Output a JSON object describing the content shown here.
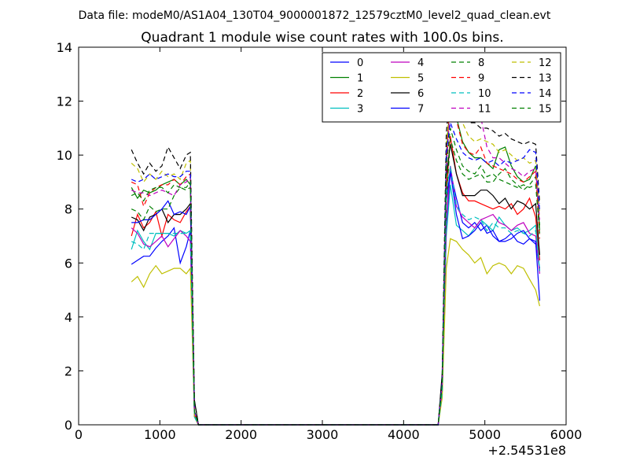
{
  "suptitle": "Data file: modeM0/AS1A04_130T04_9000001872_12579cztM0_level2_quad_clean.evt",
  "chart_data": {
    "type": "line",
    "title": "Quadrant 1 module wise count rates with 100.0s bins.",
    "xlabel": "",
    "ylabel": "",
    "x_offset_label": "+2.54531e8",
    "xlim": [
      0,
      6000
    ],
    "ylim": [
      0,
      14
    ],
    "xticks": [
      0,
      1000,
      2000,
      3000,
      4000,
      5000,
      6000
    ],
    "yticks": [
      0,
      2,
      4,
      6,
      8,
      10,
      12,
      14
    ],
    "grid": false,
    "legend": {
      "placement": "top-right",
      "columns": 4
    },
    "x": [
      650,
      725,
      800,
      875,
      950,
      1025,
      1100,
      1175,
      1250,
      1325,
      1375,
      1425,
      1475,
      1550,
      1650,
      4350,
      4425,
      4475,
      4525,
      4575,
      4650,
      4725,
      4800,
      4875,
      4950,
      5025,
      5100,
      5175,
      5250,
      5325,
      5400,
      5475,
      5550,
      5625,
      5675
    ],
    "series": [
      {
        "name": "0",
        "color": "#0000ff",
        "dash": "solid",
        "values": [
          5.95,
          6.1,
          6.25,
          6.25,
          6.55,
          6.8,
          7.0,
          7.3,
          6.0,
          6.6,
          7.2,
          0.3,
          0.0,
          0.0,
          0.0,
          0.0,
          0.0,
          1.2,
          7.2,
          9.4,
          8.4,
          7.5,
          7.3,
          7.5,
          7.2,
          7.4,
          7.0,
          6.8,
          6.9,
          7.1,
          6.8,
          6.7,
          6.9,
          6.7,
          5.8
        ]
      },
      {
        "name": "1",
        "color": "#008000",
        "dash": "solid",
        "values": [
          8.8,
          8.4,
          8.7,
          8.6,
          8.7,
          8.9,
          9.0,
          9.1,
          8.9,
          9.1,
          8.9,
          0.5,
          0.0,
          0.0,
          0.0,
          0.0,
          0.0,
          1.6,
          9.8,
          12.2,
          11.4,
          10.5,
          10.1,
          9.9,
          9.9,
          9.7,
          9.5,
          10.2,
          10.3,
          9.6,
          9.2,
          9.0,
          9.1,
          9.6,
          7.2
        ]
      },
      {
        "name": "2",
        "color": "#ff0000",
        "dash": "solid",
        "values": [
          7.0,
          7.8,
          7.3,
          7.5,
          7.9,
          7.0,
          7.8,
          7.6,
          7.5,
          7.9,
          8.1,
          0.4,
          0.0,
          0.0,
          0.0,
          0.0,
          0.0,
          1.4,
          8.6,
          10.7,
          9.3,
          8.6,
          8.3,
          8.3,
          8.2,
          8.1,
          8.0,
          8.1,
          8.0,
          8.2,
          7.8,
          8.0,
          8.4,
          7.7,
          6.1
        ]
      },
      {
        "name": "3",
        "color": "#00bfbf",
        "dash": "solid",
        "values": [
          6.5,
          7.2,
          6.8,
          6.5,
          7.1,
          7.1,
          7.1,
          7.0,
          7.2,
          7.1,
          7.2,
          0.3,
          0.0,
          0.0,
          0.0,
          0.0,
          0.0,
          1.2,
          7.0,
          8.9,
          7.4,
          7.2,
          7.0,
          7.3,
          7.6,
          7.4,
          7.2,
          7.7,
          7.4,
          7.2,
          7.3,
          7.1,
          7.2,
          7.4,
          5.7
        ]
      },
      {
        "name": "4",
        "color": "#bf00bf",
        "dash": "solid",
        "values": [
          7.3,
          7.1,
          6.7,
          6.6,
          6.8,
          7.0,
          6.6,
          6.9,
          7.2,
          7.0,
          6.8,
          0.3,
          0.0,
          0.0,
          0.0,
          0.0,
          0.0,
          1.2,
          7.5,
          9.6,
          8.1,
          7.7,
          7.5,
          7.3,
          7.6,
          7.7,
          7.8,
          7.5,
          7.4,
          7.2,
          7.4,
          7.5,
          7.1,
          7.0,
          5.6
        ]
      },
      {
        "name": "5",
        "color": "#bfbf00",
        "dash": "solid",
        "values": [
          5.3,
          5.5,
          5.1,
          5.6,
          5.9,
          5.6,
          5.7,
          5.8,
          5.8,
          5.6,
          5.8,
          0.3,
          0.0,
          0.0,
          0.0,
          0.0,
          0.0,
          1.0,
          5.8,
          6.9,
          6.8,
          6.5,
          6.3,
          6.0,
          6.2,
          5.6,
          5.9,
          6.0,
          5.9,
          5.6,
          5.9,
          5.8,
          5.4,
          5.0,
          4.4
        ]
      },
      {
        "name": "6",
        "color": "#000000",
        "dash": "solid",
        "values": [
          7.7,
          7.6,
          7.2,
          7.7,
          7.8,
          8.0,
          7.5,
          7.8,
          7.8,
          8.0,
          8.2,
          0.9,
          0.0,
          0.0,
          0.0,
          0.0,
          0.0,
          1.9,
          9.2,
          10.4,
          9.3,
          8.5,
          8.5,
          8.5,
          8.7,
          8.7,
          8.5,
          8.2,
          8.4,
          8.0,
          8.3,
          8.2,
          8.0,
          8.2,
          6.3
        ]
      },
      {
        "name": "7",
        "color": "#0000ff",
        "dash": "solid",
        "values": [
          7.5,
          7.5,
          7.6,
          7.6,
          7.8,
          8.0,
          8.3,
          7.8,
          7.9,
          7.8,
          8.1,
          0.5,
          0.0,
          0.0,
          0.0,
          0.0,
          0.0,
          1.5,
          8.3,
          9.4,
          7.8,
          6.9,
          7.0,
          7.2,
          7.5,
          7.1,
          7.2,
          6.8,
          6.8,
          6.9,
          7.1,
          7.2,
          6.9,
          6.8,
          4.6
        ]
      },
      {
        "name": "8",
        "color": "#008000",
        "dash": "dashed",
        "values": [
          8.0,
          7.9,
          7.6,
          8.1,
          7.9,
          8.0,
          8.0,
          8.5,
          8.8,
          8.7,
          8.8,
          0.5,
          0.0,
          0.0,
          0.0,
          0.0,
          0.0,
          1.5,
          8.2,
          10.6,
          9.8,
          9.3,
          9.1,
          9.2,
          9.3,
          9.0,
          9.0,
          9.3,
          9.5,
          9.1,
          8.9,
          8.7,
          8.9,
          9.2,
          7.4
        ]
      },
      {
        "name": "9",
        "color": "#ff0000",
        "dash": "dashed",
        "values": [
          9.0,
          8.9,
          8.1,
          8.6,
          8.8,
          8.9,
          8.9,
          9.1,
          8.9,
          9.2,
          9.3,
          0.5,
          0.0,
          0.0,
          0.0,
          0.0,
          0.0,
          1.6,
          9.7,
          12.6,
          11.3,
          10.4,
          10.1,
          10.0,
          10.3,
          9.7,
          9.6,
          9.5,
          9.4,
          9.3,
          9.1,
          9.0,
          9.2,
          9.4,
          6.9
        ]
      },
      {
        "name": "10",
        "color": "#00bfbf",
        "dash": "dashed",
        "values": [
          6.8,
          6.7,
          6.5,
          7.1,
          7.1,
          7.1,
          7.1,
          7.1,
          7.1,
          7.1,
          7.2,
          0.3,
          0.0,
          0.0,
          0.0,
          0.0,
          0.0,
          1.2,
          8.6,
          9.6,
          8.1,
          7.8,
          7.6,
          7.7,
          7.6,
          7.2,
          7.5,
          7.3,
          7.3,
          7.1,
          7.2,
          7.1,
          7.0,
          7.2,
          5.7
        ]
      },
      {
        "name": "11",
        "color": "#bf00bf",
        "dash": "dashed",
        "values": [
          8.7,
          8.6,
          8.6,
          8.5,
          8.6,
          8.7,
          8.6,
          8.5,
          8.9,
          9.0,
          9.2,
          0.5,
          0.0,
          0.0,
          0.0,
          0.0,
          0.0,
          1.5,
          9.5,
          11.8,
          11.5,
          11.5,
          11.4,
          11.6,
          11.4,
          10.3,
          9.9,
          9.9,
          9.7,
          9.5,
          9.4,
          9.2,
          9.4,
          9.5,
          7.6
        ]
      },
      {
        "name": "12",
        "color": "#bfbf00",
        "dash": "dashed",
        "values": [
          9.7,
          9.5,
          9.0,
          9.3,
          9.1,
          9.4,
          9.2,
          9.3,
          9.1,
          9.7,
          9.8,
          0.5,
          0.0,
          0.0,
          0.0,
          0.0,
          0.0,
          1.6,
          10.4,
          12.0,
          11.6,
          11.2,
          10.7,
          10.5,
          10.6,
          10.5,
          10.4,
          10.1,
          10.2,
          10.0,
          9.8,
          9.9,
          9.7,
          9.8,
          7.8
        ]
      },
      {
        "name": "13",
        "color": "#000000",
        "dash": "dashed",
        "values": [
          10.2,
          9.7,
          9.3,
          9.7,
          9.4,
          9.6,
          10.3,
          9.9,
          9.5,
          10.0,
          10.1,
          0.9,
          0.0,
          0.0,
          0.0,
          0.0,
          0.0,
          1.8,
          10.8,
          12.5,
          11.8,
          11.6,
          11.2,
          11.2,
          11.0,
          11.0,
          10.9,
          10.7,
          10.8,
          10.6,
          10.5,
          10.4,
          10.5,
          10.4,
          8.2
        ]
      },
      {
        "name": "14",
        "color": "#0000ff",
        "dash": "dashed",
        "values": [
          9.1,
          9.0,
          9.1,
          9.3,
          9.1,
          9.2,
          9.3,
          9.2,
          9.2,
          9.4,
          9.4,
          0.5,
          0.0,
          0.0,
          0.0,
          0.0,
          0.0,
          1.6,
          10.1,
          11.2,
          10.6,
          10.1,
          9.9,
          9.8,
          9.9,
          9.7,
          9.8,
          9.6,
          9.8,
          9.7,
          9.8,
          9.9,
          10.2,
          10.1,
          7.9
        ]
      },
      {
        "name": "15",
        "color": "#008000",
        "dash": "dashed",
        "values": [
          8.5,
          8.6,
          8.3,
          8.7,
          8.8,
          8.8,
          8.6,
          8.9,
          8.8,
          8.8,
          9.0,
          0.5,
          0.0,
          0.0,
          0.0,
          0.0,
          0.0,
          1.5,
          9.6,
          11.0,
          10.2,
          9.6,
          9.4,
          9.3,
          9.6,
          9.2,
          9.3,
          9.1,
          9.0,
          8.9,
          8.8,
          8.9,
          8.8,
          8.9,
          7.1
        ]
      }
    ]
  }
}
